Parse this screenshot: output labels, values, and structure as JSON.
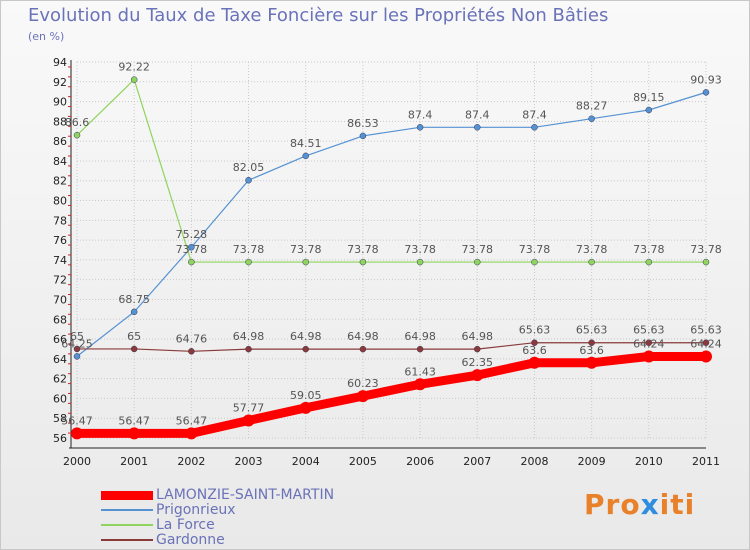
{
  "title": "Evolution du Taux de Taxe Foncière sur les Propriétés Non Bâties",
  "subtitle": "(en %)",
  "logo": "Proxiti",
  "colors": {
    "title": "#6a72b8",
    "grid": "#c9c9c9",
    "logo_letters": [
      "#e8812a",
      "#e8812a",
      "#e8812a",
      "#2f8de0",
      "#e8812a",
      "#e8812a",
      "#e8812a"
    ]
  },
  "chart_data": {
    "type": "line",
    "title": "Evolution du Taux de Taxe Foncière sur les Propriétés Non Bâties",
    "ylabel": "(en %)",
    "xlabel": "",
    "x": [
      "2000",
      "2001",
      "2002",
      "2003",
      "2004",
      "2005",
      "2006",
      "2007",
      "2008",
      "2009",
      "2010",
      "2011"
    ],
    "ylim": [
      56,
      94
    ],
    "yticks": [
      56,
      58,
      60,
      62,
      64,
      66,
      68,
      70,
      72,
      74,
      76,
      78,
      80,
      82,
      84,
      86,
      88,
      90,
      92,
      94
    ],
    "grid": true,
    "legend_position": "bottom-left",
    "series": [
      {
        "name": "LAMONZIE-SAINT-MARTIN",
        "color": "#ff0000",
        "values": [
          56.47,
          56.47,
          56.47,
          57.77,
          59.05,
          60.23,
          61.43,
          62.35,
          63.6,
          63.6,
          64.24,
          64.24
        ],
        "labels": [
          "56.47",
          "56.47",
          "56.47",
          "57.77",
          "59.05",
          "60.23",
          "61.43",
          "62.35",
          "63.6",
          "63.6",
          "64.24",
          "64.24"
        ]
      },
      {
        "name": "Prigonrieux",
        "color": "#5592d2",
        "values": [
          64.25,
          68.75,
          75.28,
          82.05,
          84.51,
          86.53,
          87.4,
          87.4,
          87.4,
          88.27,
          89.15,
          90.93
        ],
        "labels": [
          "64.25",
          "68.75",
          "75.28",
          "82.05",
          "84.51",
          "86.53",
          "87.4",
          "87.4",
          "87.4",
          "88.27",
          "89.15",
          "90.93"
        ]
      },
      {
        "name": "La Force",
        "color": "#8fd45e",
        "values": [
          86.6,
          92.22,
          73.78,
          73.78,
          73.78,
          73.78,
          73.78,
          73.78,
          73.78,
          73.78,
          73.78,
          73.78
        ],
        "labels": [
          "86.6",
          "92.22",
          "73.78",
          "73.78",
          "73.78",
          "73.78",
          "73.78",
          "73.78",
          "73.78",
          "73.78",
          "73.78",
          "73.78"
        ]
      },
      {
        "name": "Gardonne",
        "color": "#8b3a3a",
        "values": [
          65,
          65,
          64.76,
          64.98,
          64.98,
          64.98,
          64.98,
          64.98,
          65.63,
          65.63,
          65.63,
          65.63
        ],
        "labels": [
          "65",
          "65",
          "64.76",
          "64.98",
          "64.98",
          "64.98",
          "64.98",
          "64.98",
          "65.63",
          "65.63",
          "65.63",
          "65.63"
        ]
      }
    ]
  }
}
